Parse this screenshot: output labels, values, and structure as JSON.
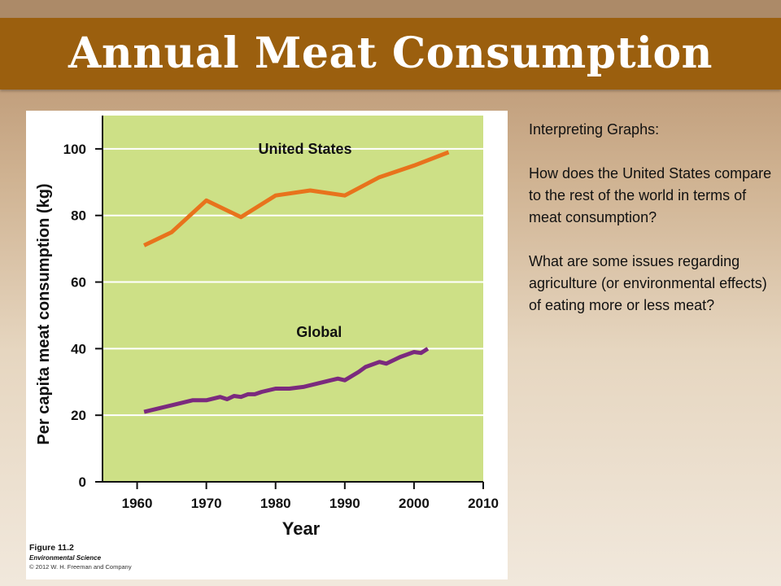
{
  "slide": {
    "title": "Annual Meat Consumption",
    "side_text": {
      "heading": "Interpreting Graphs:",
      "question1": "How does the United States compare to the rest of the world in terms of meat consumption?",
      "question2": "What are some issues regarding agriculture (or environmental effects) of eating more or less meat?"
    }
  },
  "figure": {
    "label": "Figure 11.2",
    "book": "Environmental Science",
    "copyright": "© 2012 W. H. Freeman and Company"
  },
  "colors": {
    "title_band": "#9b5f0e",
    "plot_background": "#cde086",
    "united_states": "#e8731c",
    "global": "#7b2a7e"
  },
  "chart_data": {
    "type": "line",
    "xlabel": "Year",
    "ylabel": "Per capita meat consumption (kg)",
    "xlim": [
      1955,
      2010
    ],
    "ylim": [
      0,
      110
    ],
    "x_ticks": [
      1960,
      1970,
      1980,
      1990,
      2000,
      2010
    ],
    "y_ticks": [
      0,
      20,
      40,
      60,
      80,
      100
    ],
    "grid": "horizontal",
    "series": [
      {
        "name": "United States",
        "x": [
          1961,
          1965,
          1970,
          1975,
          1980,
          1985,
          1990,
          1995,
          2000,
          2005
        ],
        "values": [
          71,
          75,
          84.5,
          79.5,
          86,
          87.5,
          86,
          91.5,
          95,
          99
        ]
      },
      {
        "name": "Global",
        "x": [
          1961,
          1965,
          1968,
          1970,
          1972,
          1973,
          1974,
          1975,
          1976,
          1977,
          1978,
          1980,
          1982,
          1984,
          1986,
          1988,
          1989,
          1990,
          1992,
          1993,
          1995,
          1996,
          1998,
          2000,
          2001,
          2002
        ],
        "values": [
          21,
          23,
          24.5,
          24.5,
          25.5,
          24.8,
          25.8,
          25.5,
          26.3,
          26.3,
          27,
          28,
          28,
          28.5,
          29.5,
          30.5,
          31,
          30.5,
          33,
          34.5,
          36,
          35.5,
          37.5,
          39,
          38.7,
          40
        ]
      }
    ]
  }
}
